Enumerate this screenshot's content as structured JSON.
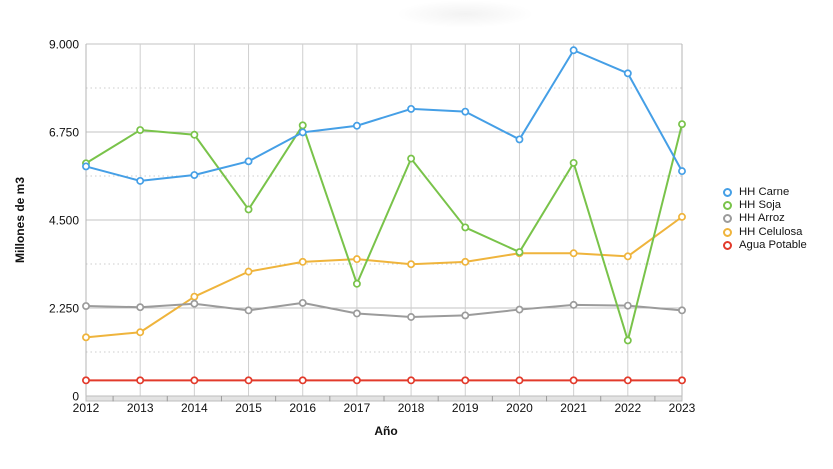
{
  "figure": {
    "background": "#ffffff",
    "grid_color_major": "#c3c3c3",
    "grid_color_vertical": "#cfcfcf",
    "grid_color_minor": "#cccccc",
    "plot_border_color": "#b5b5b5",
    "axis_band_fill": "#e3e3e3",
    "axis_band_stroke": "#bdbdbd",
    "tick_color": "#9a9a9a",
    "text_color": "#111111"
  },
  "chart_data": {
    "type": "line",
    "title": "",
    "xlabel": "Año",
    "ylabel": "Millones de m3",
    "x": [
      2012,
      2013,
      2014,
      2015,
      2016,
      2017,
      2018,
      2019,
      2020,
      2021,
      2022,
      2023
    ],
    "ylim": [
      0,
      9000
    ],
    "y_ticks": [
      {
        "value": 0,
        "label": "0"
      },
      {
        "value": 2250,
        "label": "2.250"
      },
      {
        "value": 4500,
        "label": "4.500"
      },
      {
        "value": 6750,
        "label": "6.750"
      },
      {
        "value": 9000,
        "label": "9.000"
      }
    ],
    "y_minor_ticks": [
      1125,
      3375,
      5625,
      7875
    ],
    "grid": true,
    "legend_position": "right",
    "marker": "open-circle",
    "series": [
      {
        "name": "HH Carne",
        "color": "#459fe6",
        "values": [
          5870,
          5500,
          5650,
          6000,
          6740,
          6910,
          7340,
          7270,
          6560,
          8840,
          8250,
          5750
        ]
      },
      {
        "name": "HH Soja",
        "color": "#79c34a",
        "values": [
          5950,
          6800,
          6680,
          4770,
          6920,
          2870,
          6070,
          4310,
          3680,
          5960,
          1420,
          6950
        ]
      },
      {
        "name": "HH Arroz",
        "color": "#9b9b9b",
        "values": [
          2300,
          2270,
          2360,
          2190,
          2380,
          2110,
          2020,
          2060,
          2210,
          2330,
          2310,
          2190
        ]
      },
      {
        "name": "HH Celulosa",
        "color": "#efb43c",
        "values": [
          1500,
          1630,
          2540,
          3180,
          3430,
          3500,
          3370,
          3430,
          3650,
          3650,
          3570,
          4580
        ]
      },
      {
        "name": "Agua Potable",
        "color": "#e23a2b",
        "values": [
          400,
          400,
          400,
          400,
          400,
          400,
          400,
          400,
          400,
          400,
          400,
          400
        ]
      }
    ]
  }
}
